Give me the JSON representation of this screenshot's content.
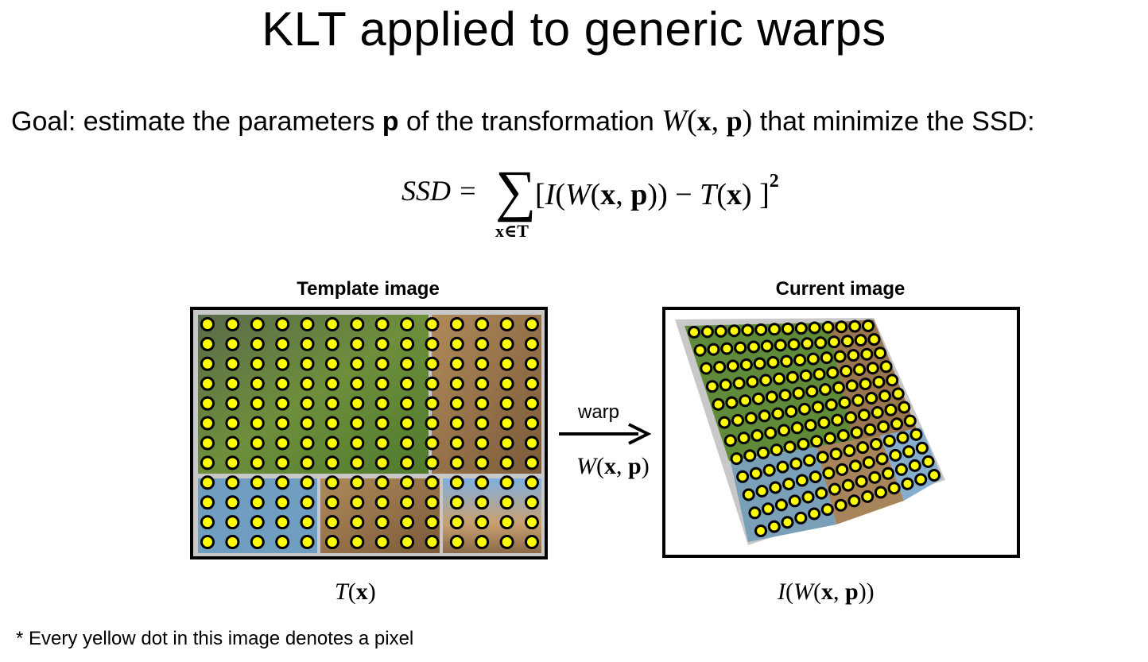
{
  "slide": {
    "title": "KLT applied to generic warps",
    "goal_prefix": "Goal: estimate the parameters ",
    "goal_param": "p",
    "goal_middle": " of the transformation ",
    "goal_func": "W",
    "goal_open": "(",
    "goal_x": "x",
    "goal_comma": ", ",
    "goal_p": "p",
    "goal_close": ")",
    "goal_suffix": " that minimize the SSD:"
  },
  "formula": {
    "lhs": "SSD =",
    "sigma": "∑",
    "sum_sub": "x∈T",
    "bracket_open": "[",
    "I": "I",
    "paren_open": "(",
    "W": "W",
    "inner_open": "(",
    "x": "x",
    "comma": ", ",
    "p": "p",
    "inner_close": "))",
    "minus": " − ",
    "T": "T",
    "t_open": "(",
    "x2": "x",
    "t_close": ")",
    "bracket_close": " ]",
    "exponent": "2"
  },
  "figure": {
    "template_caption": "Template image",
    "current_caption": "Current image",
    "warp_label": "warp",
    "warp_W": "W",
    "warp_open": "(",
    "warp_x": "x",
    "warp_comma": ", ",
    "warp_p": "p",
    "warp_close": ")",
    "template_below_T": "T",
    "template_below_open": "(",
    "template_below_x": "x",
    "template_below_close": ")",
    "current_below_I": "I",
    "current_below_open": "(",
    "current_below_W": "W",
    "current_below_inner": "(",
    "current_below_x": "x",
    "current_below_comma": ", ",
    "current_below_p": "p",
    "current_below_close": "))",
    "dot_color": "#ffff00",
    "dot_outline": "#000000",
    "grid_cols": 14,
    "grid_rows": 12
  },
  "footnote": "* Every yellow dot in this image denotes a pixel"
}
